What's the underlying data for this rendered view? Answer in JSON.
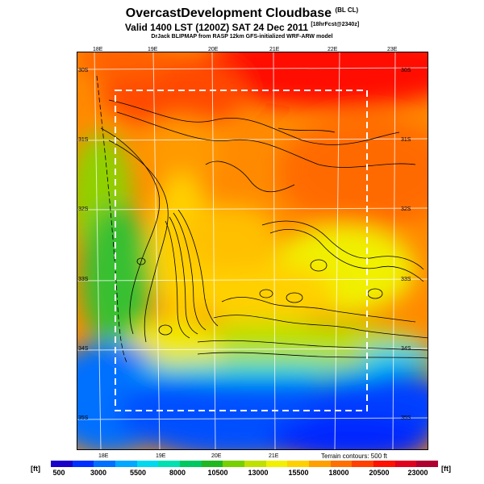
{
  "title": "OvercastDevelopment Cloudbase",
  "title_sup": "(BL CL)",
  "subtitle": "Valid 1400 LST (1200Z) SAT 24 Dec 2011",
  "subtitle_sup": "[18hrFcst@2340z]",
  "credit": "DrJack BLIPMAP from RASP 12km GFS-initialized WRF-ARW model",
  "map": {
    "lon_labels_top": [
      "18E",
      "19E",
      "20E",
      "21E",
      "22E",
      "23E"
    ],
    "lon_labels_bottom": [
      "18E",
      "19E",
      "20E",
      "21E"
    ],
    "lat_labels_left": [
      "30S",
      "31S",
      "32S",
      "33S",
      "34S",
      "35S"
    ],
    "lat_labels_right": [
      "30S",
      "31S",
      "32S",
      "33S",
      "34S",
      "35S"
    ]
  },
  "contour_note": "Terrain contours: 500 ft",
  "colorbar": {
    "unit_left": "[ft]",
    "unit_right": "[ft]",
    "ticks": [
      "500",
      "3000",
      "5500",
      "8000",
      "10500",
      "13000",
      "15500",
      "18000",
      "20500",
      "23000"
    ],
    "colors": [
      "#1a00c8",
      "#0030ff",
      "#0070ff",
      "#00a8ff",
      "#00d8f0",
      "#00e0b0",
      "#00c860",
      "#20b820",
      "#78d000",
      "#c0e000",
      "#f0f000",
      "#ffd000",
      "#ffa000",
      "#ff7000",
      "#ff4000",
      "#ff1000",
      "#e00020",
      "#b00030"
    ]
  }
}
